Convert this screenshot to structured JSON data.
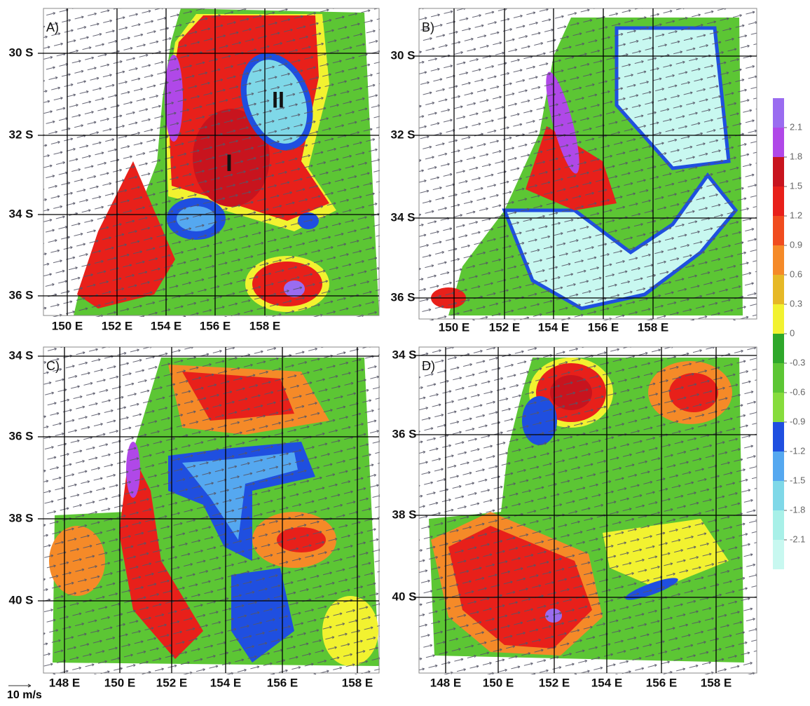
{
  "panels": [
    {
      "label": "A)",
      "lat_ticks": [
        "30 S",
        "32 S",
        "34 S",
        "36 S"
      ],
      "lon_ticks": [
        "150 E",
        "152 E",
        "154 E",
        "156 E",
        "158 E"
      ],
      "annotations": [
        "I",
        "II"
      ]
    },
    {
      "label": "B)",
      "lat_ticks": [
        "30 S",
        "32 S",
        "34 S",
        "36 S"
      ],
      "lon_ticks": [
        "150 E",
        "152 E",
        "154 E",
        "156 E",
        "158 E"
      ]
    },
    {
      "label": "C)",
      "lat_ticks": [
        "34 S",
        "36 S",
        "38 S",
        "40 S"
      ],
      "lon_ticks": [
        "148 E",
        "150 E",
        "152 E",
        "154 E",
        "156 E",
        "158 E"
      ]
    },
    {
      "label": "D)",
      "lat_ticks": [
        "34 S",
        "36 S",
        "38 S",
        "40 S"
      ],
      "lon_ticks": [
        "148 E",
        "150 E",
        "152 E",
        "154 E",
        "156 E",
        "158 E"
      ]
    }
  ],
  "colorbar": {
    "ticks": [
      2.1,
      1.8,
      1.5,
      1.2,
      0.9,
      0.6,
      0.3,
      0,
      -0.3,
      -0.6,
      -0.9,
      -1.2,
      -1.5,
      -1.8,
      -2.1
    ],
    "colors": [
      "#9a6cf0",
      "#b048e8",
      "#c8141e",
      "#e8201a",
      "#f04c1e",
      "#f58a28",
      "#e6b826",
      "#f2f230",
      "#2fa82a",
      "#5cc634",
      "#86dc3c",
      "#1f4fe0",
      "#55a8f0",
      "#7fd8e8",
      "#a8f0e8",
      "#c8f8f0"
    ]
  },
  "scale_label": "10 m/s"
}
